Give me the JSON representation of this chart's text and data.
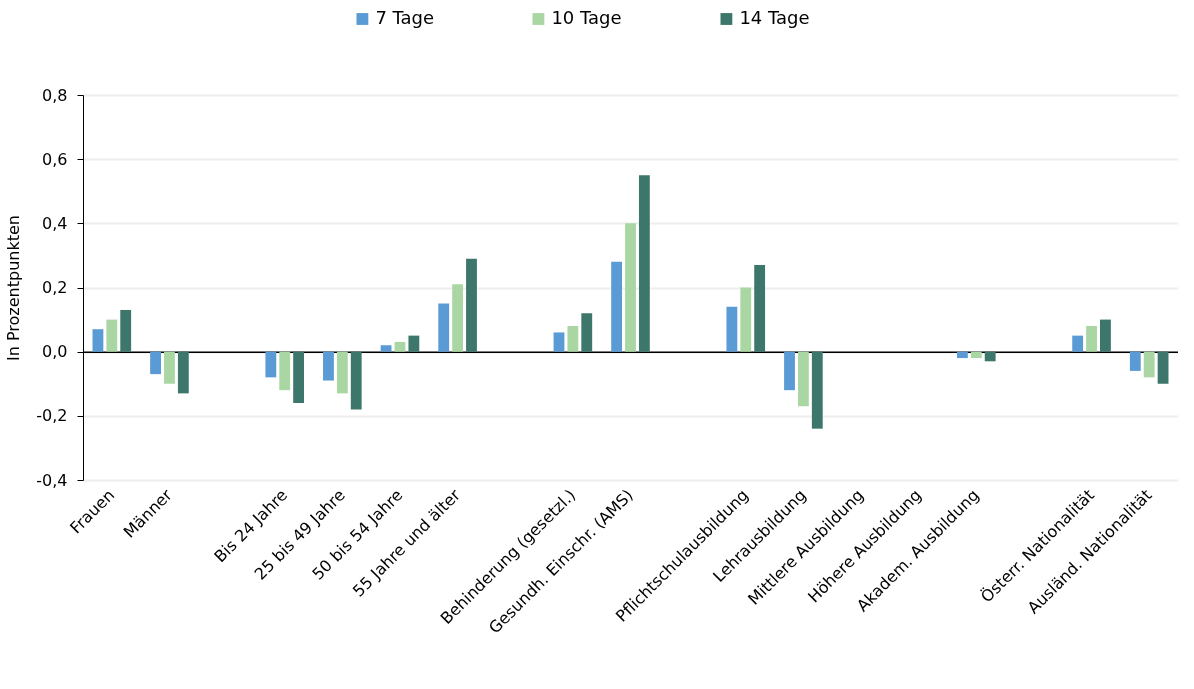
{
  "chart_data": {
    "type": "bar",
    "categories": [
      "Frauen",
      "Männer",
      null,
      "Bis 24 Jahre",
      "25 bis 49  Jahre",
      "50 bis 54 Jahre",
      "55 Jahre und älter",
      null,
      "Behinderung (gesetzl.)",
      "Gesundh. Einschr. (AMS)",
      null,
      "Pflichtschulausbildung",
      "Lehrausbildung",
      "Mittlere Ausbildung",
      "Höhere Ausbildung",
      "Akadem. Ausbildung",
      null,
      "Österr. Nationalität",
      "Ausländ. Nationalität"
    ],
    "series": [
      {
        "name": "7 Tage",
        "color": "#5a9bd5",
        "values": [
          0.07,
          -0.07,
          null,
          -0.08,
          -0.09,
          0.02,
          0.15,
          null,
          0.06,
          0.28,
          null,
          0.14,
          -0.12,
          null,
          null,
          -0.02,
          null,
          0.05,
          -0.06
        ]
      },
      {
        "name": "10 Tage",
        "color": "#a9d6a3",
        "values": [
          0.1,
          -0.1,
          null,
          -0.12,
          -0.13,
          0.03,
          0.21,
          null,
          0.08,
          0.4,
          null,
          0.2,
          -0.17,
          null,
          null,
          -0.02,
          null,
          0.08,
          -0.08
        ]
      },
      {
        "name": "14 Tage",
        "color": "#3d766a",
        "values": [
          0.13,
          -0.13,
          null,
          -0.16,
          -0.18,
          0.05,
          0.29,
          null,
          0.12,
          0.55,
          null,
          0.27,
          -0.24,
          null,
          null,
          -0.03,
          null,
          0.1,
          -0.1
        ]
      }
    ],
    "ylabel": "In Prozentpunkten",
    "ylim": [
      -0.4,
      0.8
    ],
    "yticks": [
      {
        "value": -0.4,
        "label": "-0,4"
      },
      {
        "value": -0.2,
        "label": "-0,2"
      },
      {
        "value": 0,
        "label": "0,0"
      },
      {
        "value": 0.2,
        "label": "0,2"
      },
      {
        "value": 0.4,
        "label": "0,4"
      },
      {
        "value": 0.6,
        "label": "0,6"
      },
      {
        "value": 0.8,
        "label": "0,8"
      }
    ],
    "grid": "y",
    "legend": "top"
  }
}
